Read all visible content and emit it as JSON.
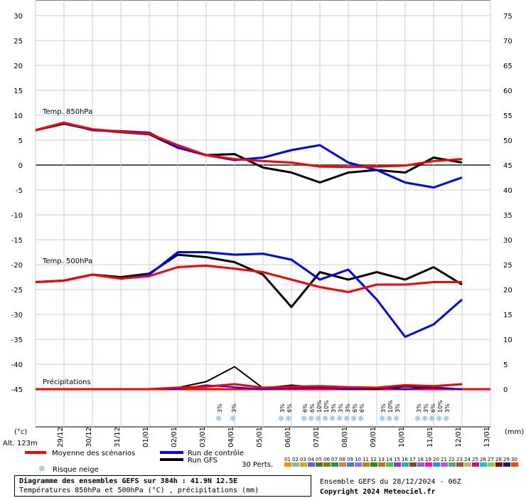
{
  "chart_data": {
    "type": "line",
    "left_axis_label": "(°c)",
    "right_axis_label": "(mm)",
    "altitude": "Alt. 123m",
    "left_ticks": [
      30,
      25,
      20,
      15,
      10,
      5,
      0,
      -5,
      -10,
      -15,
      -20,
      -25,
      -30,
      -35,
      -40,
      -45
    ],
    "right_ticks": [
      75,
      70,
      65,
      60,
      55,
      50,
      45,
      40,
      35,
      30,
      25,
      20,
      15,
      10,
      5,
      0
    ],
    "ylim": [
      -45,
      30
    ],
    "right_ylim": [
      0,
      75
    ],
    "x_labels": [
      "29/12",
      "30/12",
      "31/12",
      "01/01",
      "02/01",
      "03/01",
      "04/01",
      "05/01",
      "06/01",
      "07/01",
      "08/01",
      "09/01",
      "10/01",
      "11/01",
      "12/01",
      "13/01"
    ],
    "sections": {
      "t850": "Temp. 850hPa",
      "t500": "Temp. 500hPa",
      "precip": "Précipitations"
    },
    "series": [
      {
        "name": "Moyenne des scénarios",
        "color": "#ff0000",
        "t850": [
          7.0,
          8.5,
          7.2,
          6.7,
          6.3,
          4.0,
          2.0,
          1.2,
          0.8,
          0.5,
          -0.3,
          -0.4,
          -0.3,
          -0.1,
          0.8,
          1.2
        ],
        "t500": [
          -23.5,
          -23.2,
          -22.0,
          -22.8,
          -22.3,
          -20.5,
          -20.2,
          -20.8,
          -21.5,
          -23.0,
          -24.5,
          -25.5,
          -24.0,
          -24.0,
          -23.5,
          -23.5
        ],
        "precip": [
          0,
          0,
          0,
          0,
          0,
          0.3,
          0.5,
          1.0,
          0.3,
          0.5,
          0.6,
          0.4,
          0.3,
          0.8,
          0.6,
          1.0
        ]
      },
      {
        "name": "Run de contrôle",
        "color": "#0000ff",
        "t850": [
          7.0,
          8.5,
          7.0,
          6.8,
          6.5,
          3.5,
          2.0,
          1.0,
          1.5,
          3.0,
          4.0,
          0.5,
          -1.0,
          -3.5,
          -4.5,
          -2.5
        ],
        "t500": [
          -23.5,
          -23.2,
          -22.0,
          -22.8,
          -22.0,
          -17.5,
          -17.5,
          -18.0,
          -17.8,
          -19.0,
          -23.0,
          -21.0,
          -27.0,
          -34.5,
          -32.0,
          -27.0
        ],
        "precip": [
          0,
          0,
          0,
          0,
          0,
          0,
          0.8,
          0.4,
          0,
          0.2,
          0.3,
          0,
          0.3,
          0,
          0.4,
          0
        ]
      },
      {
        "name": "Run GFS",
        "color": "#000000",
        "t850": [
          7.0,
          8.3,
          7.1,
          6.6,
          6.2,
          3.5,
          2.0,
          2.2,
          -0.5,
          -1.5,
          -3.5,
          -1.5,
          -1.0,
          -1.5,
          1.5,
          0.5
        ],
        "t500": [
          -23.5,
          -23.2,
          -22.0,
          -22.5,
          -21.8,
          -18.0,
          -18.5,
          -19.5,
          -22.0,
          -28.5,
          -21.5,
          -23.0,
          -21.5,
          -23.0,
          -20.5,
          -24.0
        ],
        "precip": [
          0,
          0,
          0,
          0,
          0,
          0.3,
          1.5,
          4.5,
          0.2,
          0.8,
          0.3,
          0,
          0,
          0.5,
          0.3,
          0
        ]
      }
    ],
    "snow_risk": {
      "markers": [
        {
          "x": 6.45,
          "label": "3%"
        },
        {
          "x": 6.95,
          "label": "3%"
        },
        {
          "x": 8.65,
          "label": "3%"
        },
        {
          "x": 8.9,
          "label": "6%"
        },
        {
          "x": 9.45,
          "label": "6%"
        },
        {
          "x": 9.7,
          "label": "6%"
        },
        {
          "x": 9.95,
          "label": "10%"
        },
        {
          "x": 10.2,
          "label": "10%"
        },
        {
          "x": 10.45,
          "label": "3%"
        },
        {
          "x": 10.7,
          "label": "3%"
        },
        {
          "x": 10.95,
          "label": "3%"
        },
        {
          "x": 11.2,
          "label": "6%"
        },
        {
          "x": 11.45,
          "label": "6%"
        },
        {
          "x": 12.2,
          "label": "3%"
        },
        {
          "x": 12.45,
          "label": "10%"
        },
        {
          "x": 12.7,
          "label": "3%"
        },
        {
          "x": 13.45,
          "label": "3%"
        },
        {
          "x": 13.7,
          "label": "3%"
        },
        {
          "x": 13.95,
          "label": "6%"
        },
        {
          "x": 14.2,
          "label": "10%"
        },
        {
          "x": 14.45,
          "label": "3%"
        }
      ]
    },
    "perturbations": {
      "label": "30 Perts.",
      "ids": [
        "01",
        "02",
        "03",
        "04",
        "05",
        "06",
        "07",
        "08",
        "09",
        "10",
        "11",
        "12",
        "13",
        "14",
        "15",
        "16",
        "17",
        "18",
        "19",
        "20",
        "21",
        "22",
        "23",
        "24",
        "25",
        "26",
        "27",
        "28",
        "29",
        "30"
      ],
      "colors": [
        "#ff8c00",
        "#8fbc8f",
        "#daa520",
        "#6a5acd",
        "#556b2f",
        "#808000",
        "#2e8b57",
        "#cd853f",
        "#4682b4",
        "#9370db",
        "#b8860b",
        "#228b22",
        "#d2691e",
        "#32cd32",
        "#9932cc",
        "#20b2aa",
        "#8b4513",
        "#7b68ee",
        "#ff1493",
        "#1e90ff",
        "#ba55d3",
        "#3cb371",
        "#a0522d",
        "#bdb76b",
        "#c71585",
        "#00ced1",
        "#9acd32",
        "#8b0000",
        "#191970",
        "#ff4500"
      ]
    },
    "legend": {
      "mean": "Moyenne des scénarios",
      "control": "Run de contrôle",
      "gfs": "Run GFS",
      "snow": "Risque neige"
    },
    "grid": true
  },
  "footer": {
    "title": "Diagramme des ensembles GEFS sur 384h : 41.9N 12.5E",
    "subtitle": "Températures 850hPa et 500hPa (°C) , précipitations (mm)",
    "ensemble": "Ensemble GEFS du 28/12/2024 - 06Z",
    "copyright": "Copyright 2024 Meteociel.fr"
  }
}
